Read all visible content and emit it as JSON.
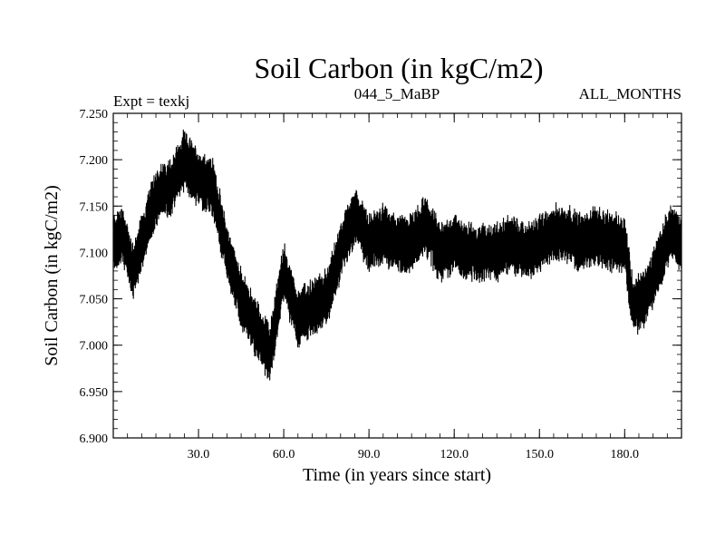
{
  "chart_data": {
    "type": "line",
    "title": "Soil Carbon (in kgC/m2)",
    "subtitle_left": "Expt = texkj",
    "subtitle_center": "044_5_MaBP",
    "subtitle_right": "ALL_MONTHS",
    "xlabel": "Time (in years since start)",
    "ylabel": "Soil Carbon (in kgC/m2)",
    "xlim": [
      0,
      200
    ],
    "ylim": [
      6.9,
      7.25
    ],
    "xticks": [
      30,
      60,
      90,
      120,
      150,
      180
    ],
    "xtick_labels": [
      "30.0",
      "60.0",
      "90.0",
      "120.0",
      "150.0",
      "180.0"
    ],
    "yticks": [
      6.9,
      6.95,
      7.0,
      7.05,
      7.1,
      7.15,
      7.2,
      7.25
    ],
    "ytick_labels": [
      "6.900",
      "6.950",
      "7.000",
      "7.050",
      "7.100",
      "7.150",
      "7.200",
      "7.250"
    ],
    "series": [
      {
        "name": "Soil Carbon",
        "color": "#000000",
        "trend_x": [
          0,
          3,
          7,
          11,
          15,
          20,
          25,
          30,
          35,
          40,
          45,
          50,
          55,
          60,
          65,
          70,
          75,
          80,
          85,
          90,
          95,
          100,
          105,
          110,
          115,
          120,
          125,
          130,
          135,
          140,
          145,
          150,
          155,
          160,
          165,
          170,
          175,
          180,
          183,
          187,
          192,
          196,
          200
        ],
        "trend_y": [
          7.11,
          7.12,
          7.08,
          7.12,
          7.16,
          7.17,
          7.2,
          7.18,
          7.17,
          7.1,
          7.05,
          7.02,
          6.99,
          7.08,
          7.03,
          7.04,
          7.05,
          7.1,
          7.14,
          7.11,
          7.12,
          7.11,
          7.11,
          7.13,
          7.1,
          7.11,
          7.1,
          7.1,
          7.1,
          7.11,
          7.1,
          7.11,
          7.12,
          7.12,
          7.11,
          7.12,
          7.11,
          7.11,
          7.04,
          7.05,
          7.09,
          7.12,
          7.11
        ],
        "monthly_amplitude": 0.03
      }
    ]
  }
}
